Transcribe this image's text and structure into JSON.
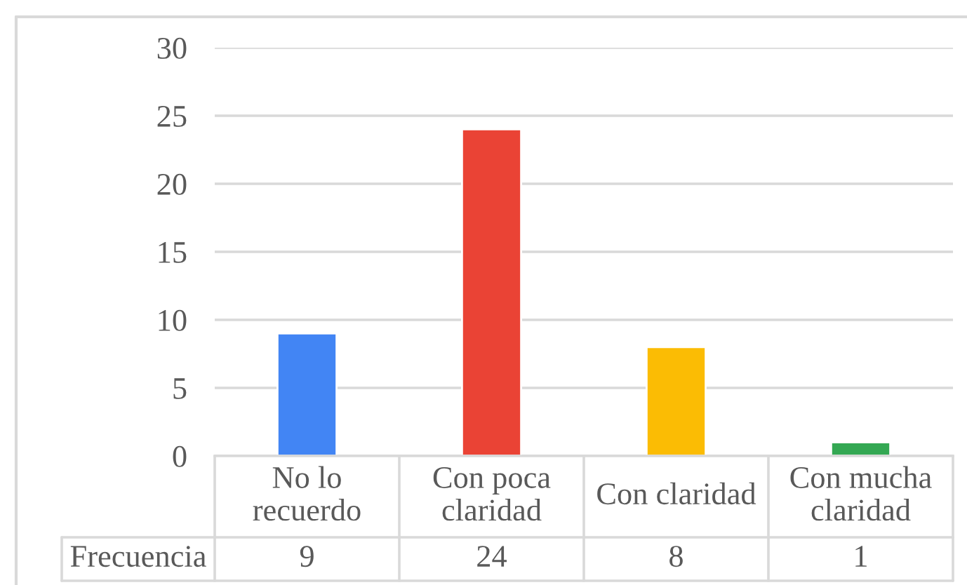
{
  "chart_data": {
    "type": "bar",
    "categories": [
      "No lo recuerdo",
      "Con poca claridad",
      "Con claridad",
      "Con mucha claridad"
    ],
    "series": [
      {
        "name": "Frecuencia",
        "values": [
          9,
          24,
          8,
          1
        ]
      }
    ],
    "colors": [
      "#4285f4",
      "#ea4335",
      "#fbbc04",
      "#34a853"
    ],
    "ylim": [
      0,
      30
    ],
    "yticks": [
      0,
      5,
      10,
      15,
      20,
      25,
      30
    ],
    "grid": "y",
    "data_labels": true
  }
}
